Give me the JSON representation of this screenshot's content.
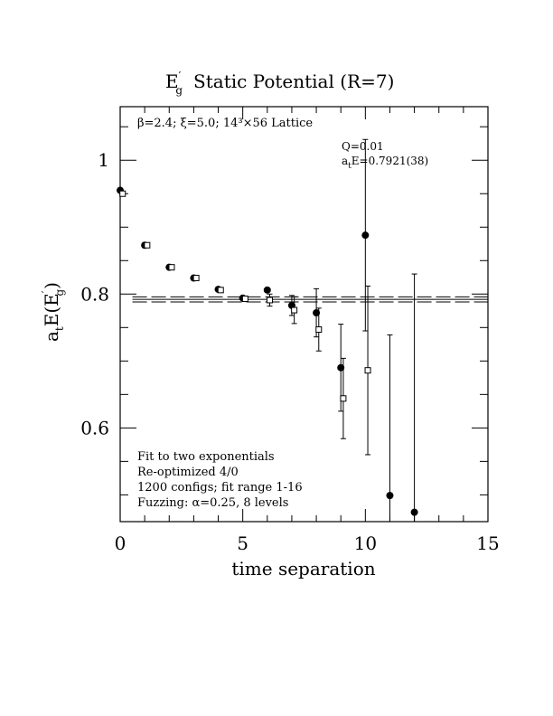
{
  "chart_data": {
    "type": "scatter",
    "title_symbol": "E",
    "title_symbol_prime": "′",
    "title_symbol_subscript": "g",
    "title_text": "Static Potential (R=7)",
    "xlabel": "time separation",
    "ylabel_prefix": "a",
    "ylabel_prefix_sub": "t",
    "ylabel_main": "E(E",
    "ylabel_prime": "′",
    "ylabel_sub": "g",
    "ylabel_close": ")",
    "xlim": [
      0,
      15
    ],
    "ylim": [
      0.46,
      1.08
    ],
    "x_ticks": [
      0,
      5,
      10,
      15
    ],
    "x_tick_labels": [
      "0",
      "5",
      "10",
      "15"
    ],
    "y_ticks": [
      0.6,
      0.8,
      1.0
    ],
    "y_tick_labels": [
      "0.6",
      "0.8",
      "1"
    ],
    "grid": false,
    "lattice_label": "β=2.4; ξ=5.0; 14³×56 Lattice",
    "fit_q": "Q=0.01",
    "fit_energy_prefix": "a",
    "fit_energy_sub": "t",
    "fit_energy_text": "E=0.7921(38)",
    "fit_band": {
      "center": 0.7921,
      "error": 0.0038
    },
    "notes": [
      "Fit to two exponentials",
      "Re-optimized 4/0",
      "1200 configs; fit range 1-16",
      "Fuzzing: α=0.25, 8 levels"
    ],
    "series": [
      {
        "marker": "filled-circle",
        "points": [
          {
            "x": 0,
            "y": 0.955,
            "err": 0.0
          },
          {
            "x": 1,
            "y": 0.873,
            "err": 0.0
          },
          {
            "x": 2,
            "y": 0.84,
            "err": 0.0
          },
          {
            "x": 3,
            "y": 0.824,
            "err": 0.0
          },
          {
            "x": 4,
            "y": 0.807,
            "err": 0.0
          },
          {
            "x": 5,
            "y": 0.794,
            "err": 0.0
          },
          {
            "x": 6,
            "y": 0.806,
            "err": 0.0
          },
          {
            "x": 7,
            "y": 0.783,
            "err": 0.015
          },
          {
            "x": 8,
            "y": 0.772,
            "err": 0.036
          },
          {
            "x": 9,
            "y": 0.69,
            "err": 0.065
          },
          {
            "x": 10,
            "y": 0.888,
            "err": 0.143
          },
          {
            "x": 11,
            "y": 0.499,
            "err": 0.24
          },
          {
            "x": 12,
            "y": 0.474,
            "err": 0.356
          }
        ]
      },
      {
        "marker": "open-square",
        "points": [
          {
            "x": 0.1,
            "y": 0.95,
            "err": 0.0
          },
          {
            "x": 1.1,
            "y": 0.873,
            "err": 0.0
          },
          {
            "x": 2.1,
            "y": 0.84,
            "err": 0.0
          },
          {
            "x": 3.1,
            "y": 0.824,
            "err": 0.0
          },
          {
            "x": 4.1,
            "y": 0.806,
            "err": 0.0
          },
          {
            "x": 5.1,
            "y": 0.793,
            "err": 0.0
          },
          {
            "x": 6.1,
            "y": 0.791,
            "err": 0.009
          },
          {
            "x": 7.1,
            "y": 0.776,
            "err": 0.02
          },
          {
            "x": 8.1,
            "y": 0.747,
            "err": 0.032
          },
          {
            "x": 9.1,
            "y": 0.644,
            "err": 0.06
          },
          {
            "x": 10.1,
            "y": 0.686,
            "err": 0.126
          }
        ]
      }
    ]
  }
}
